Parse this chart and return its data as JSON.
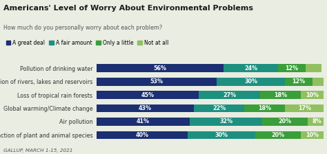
{
  "title": "Americans' Level of Worry About Environmental Problems",
  "subtitle": "How much do you personally worry about each problem?",
  "footer": "GALLUP, MARCH 1-15, 2021",
  "background_color": "#eaede2",
  "categories": [
    "Pollution of drinking water",
    "Pollution of rivers, lakes and reservoirs",
    "Loss of tropical rain forests",
    "Global warming/Climate change",
    "Air pollution",
    "Extinction of plant and animal species"
  ],
  "legend_labels": [
    "A great deal",
    "A fair amount",
    "Only a little",
    "Not at all"
  ],
  "colors": [
    "#1b2f72",
    "#1e9080",
    "#3a9e3a",
    "#90c060"
  ],
  "data": [
    [
      56,
      24,
      12,
      7
    ],
    [
      53,
      30,
      12,
      5
    ],
    [
      45,
      27,
      18,
      10
    ],
    [
      43,
      22,
      18,
      17
    ],
    [
      41,
      32,
      20,
      8
    ],
    [
      40,
      30,
      20,
      10
    ]
  ],
  "bar_height": 0.6,
  "text_fontsize": 5.8,
  "label_fontsize": 5.8,
  "title_fontsize": 8.0,
  "subtitle_fontsize": 5.8,
  "legend_fontsize": 5.5,
  "footer_fontsize": 5.2
}
